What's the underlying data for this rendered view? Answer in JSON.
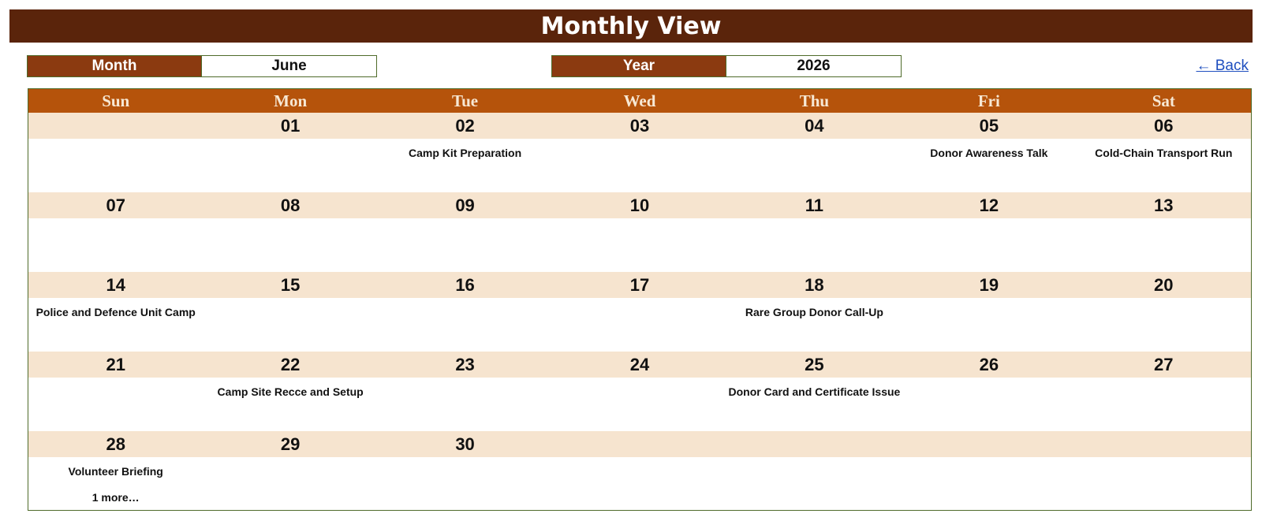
{
  "header": {
    "title": "Monthly View"
  },
  "controls": {
    "month_label": "Month",
    "month_value": "June",
    "year_label": "Year",
    "year_value": "2026",
    "back_label": "← Back"
  },
  "calendar": {
    "weekdays": [
      "Sun",
      "Mon",
      "Tue",
      "Wed",
      "Thu",
      "Fri",
      "Sat"
    ],
    "weeks": [
      {
        "days": [
          "",
          "01",
          "02",
          "03",
          "04",
          "05",
          "06"
        ],
        "events": [
          "",
          "",
          "Camp Kit Preparation",
          "",
          "",
          "Donor Awareness Talk",
          "Cold-Chain Transport Run"
        ],
        "more": [
          "",
          "",
          "",
          "",
          "",
          "",
          ""
        ]
      },
      {
        "days": [
          "07",
          "08",
          "09",
          "10",
          "11",
          "12",
          "13"
        ],
        "events": [
          "",
          "",
          "",
          "",
          "",
          "",
          ""
        ],
        "more": [
          "",
          "",
          "",
          "",
          "",
          "",
          ""
        ]
      },
      {
        "days": [
          "14",
          "15",
          "16",
          "17",
          "18",
          "19",
          "20"
        ],
        "events": [
          "Police and Defence Unit Camp",
          "",
          "",
          "",
          "Rare Group Donor Call-Up",
          "",
          ""
        ],
        "more": [
          "",
          "",
          "",
          "",
          "",
          "",
          ""
        ]
      },
      {
        "days": [
          "21",
          "22",
          "23",
          "24",
          "25",
          "26",
          "27"
        ],
        "events": [
          "",
          "Camp Site Recce and Setup",
          "",
          "",
          "Donor Card and Certificate Issue",
          "",
          ""
        ],
        "more": [
          "",
          "",
          "",
          "",
          "",
          "",
          ""
        ]
      },
      {
        "days": [
          "28",
          "29",
          "30",
          "",
          "",
          "",
          ""
        ],
        "events": [
          "Volunteer Briefing",
          "",
          "",
          "",
          "",
          "",
          ""
        ],
        "more": [
          "1 more…",
          "",
          "",
          "",
          "",
          "",
          ""
        ]
      }
    ]
  }
}
